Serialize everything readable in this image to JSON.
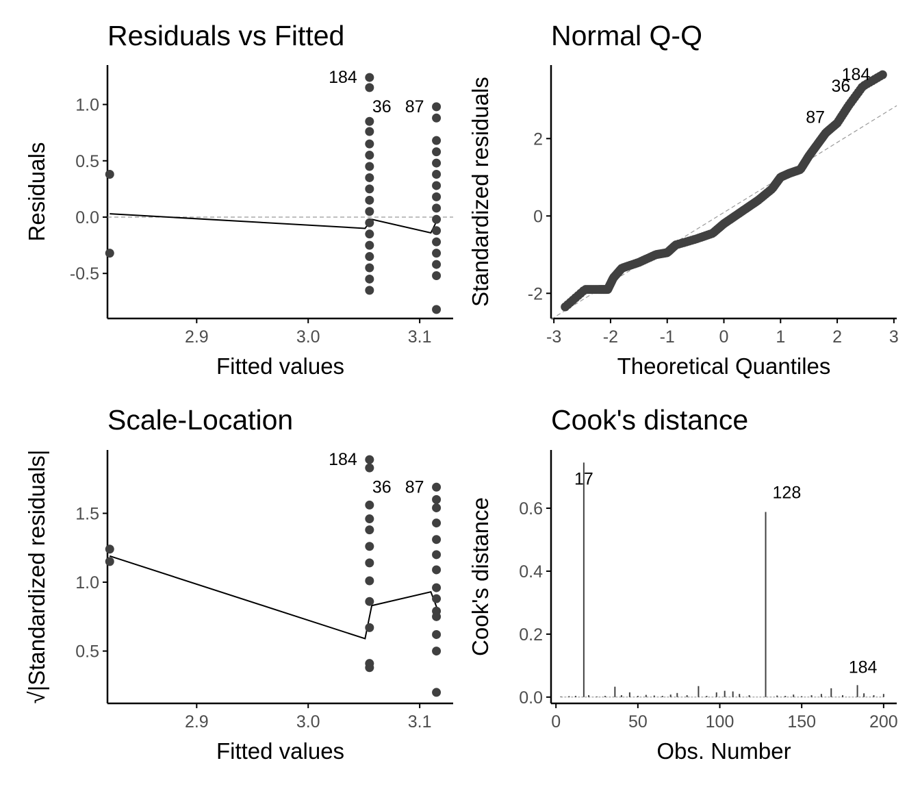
{
  "chart_data": [
    {
      "type": "scatter",
      "title": "Residuals vs Fitted",
      "xlabel": "Fitted values",
      "ylabel": "Residuals",
      "xlim": [
        2.82,
        3.13
      ],
      "ylim": [
        -0.9,
        1.35
      ],
      "xticks": [
        2.9,
        3.0,
        3.1
      ],
      "xtick_labels": [
        "2.9",
        "3.0",
        "3.1"
      ],
      "yticks": [
        1.0,
        0.5,
        0.0,
        -0.5
      ],
      "ytick_labels": [
        "1.0",
        "0.5",
        "0.0",
        "-0.5"
      ],
      "reference_line": {
        "y": 0,
        "style": "dashed"
      },
      "points": [
        [
          2.822,
          0.38
        ],
        [
          2.822,
          -0.32
        ],
        [
          3.055,
          1.24
        ],
        [
          3.055,
          1.15
        ],
        [
          3.055,
          0.85
        ],
        [
          3.055,
          0.76
        ],
        [
          3.055,
          0.65
        ],
        [
          3.055,
          0.55
        ],
        [
          3.055,
          0.45
        ],
        [
          3.055,
          0.35
        ],
        [
          3.055,
          0.25
        ],
        [
          3.055,
          0.15
        ],
        [
          3.055,
          0.05
        ],
        [
          3.055,
          -0.05
        ],
        [
          3.055,
          -0.15
        ],
        [
          3.055,
          -0.25
        ],
        [
          3.055,
          -0.35
        ],
        [
          3.055,
          -0.45
        ],
        [
          3.055,
          -0.55
        ],
        [
          3.055,
          -0.65
        ],
        [
          3.115,
          0.98
        ],
        [
          3.115,
          0.88
        ],
        [
          3.115,
          0.68
        ],
        [
          3.115,
          0.58
        ],
        [
          3.115,
          0.48
        ],
        [
          3.115,
          0.38
        ],
        [
          3.115,
          0.28
        ],
        [
          3.115,
          0.18
        ],
        [
          3.115,
          0.08
        ],
        [
          3.115,
          -0.02
        ],
        [
          3.115,
          -0.12
        ],
        [
          3.115,
          -0.22
        ],
        [
          3.115,
          -0.32
        ],
        [
          3.115,
          -0.42
        ],
        [
          3.115,
          -0.52
        ],
        [
          3.115,
          -0.82
        ]
      ],
      "smooth_line": [
        [
          2.822,
          0.03
        ],
        [
          3.051,
          -0.1
        ],
        [
          3.057,
          -0.02
        ],
        [
          3.11,
          -0.14
        ],
        [
          3.117,
          0.0
        ]
      ],
      "point_labels": [
        {
          "text": "184",
          "x": 3.055,
          "y": 1.24,
          "side": "left"
        },
        {
          "text": "36",
          "x": 3.055,
          "y": 0.98,
          "side": "right"
        },
        {
          "text": "87",
          "x": 3.115,
          "y": 0.98,
          "side": "left"
        }
      ]
    },
    {
      "type": "scatter",
      "title": "Normal Q-Q",
      "xlabel": "Theoretical Quantiles",
      "ylabel": "Standardized residuals",
      "xlim": [
        -3.05,
        3.05
      ],
      "ylim": [
        -2.65,
        3.9
      ],
      "xticks": [
        -3,
        -2,
        -1,
        0,
        1,
        2,
        3
      ],
      "xtick_labels": [
        "-3",
        "-2",
        "-1",
        "0",
        "1",
        "2",
        "3"
      ],
      "yticks": [
        2,
        0,
        -2
      ],
      "ytick_labels": [
        "2",
        "0",
        "-2"
      ],
      "reference_line": {
        "x": [
          -3.05,
          3.05
        ],
        "y": [
          -2.67,
          2.85
        ],
        "style": "dashed"
      },
      "quantile_curve": [
        [
          -2.8,
          -2.35
        ],
        [
          -2.45,
          -1.9
        ],
        [
          -2.2,
          -1.9
        ],
        [
          -2.05,
          -1.9
        ],
        [
          -1.95,
          -1.6
        ],
        [
          -1.8,
          -1.35
        ],
        [
          -1.5,
          -1.2
        ],
        [
          -1.2,
          -1.0
        ],
        [
          -1.0,
          -0.95
        ],
        [
          -0.85,
          -0.75
        ],
        [
          -0.5,
          -0.6
        ],
        [
          -0.2,
          -0.45
        ],
        [
          0.0,
          -0.2
        ],
        [
          0.2,
          0.0
        ],
        [
          0.4,
          0.2
        ],
        [
          0.6,
          0.4
        ],
        [
          0.85,
          0.7
        ],
        [
          1.0,
          1.0
        ],
        [
          1.15,
          1.1
        ],
        [
          1.35,
          1.2
        ],
        [
          1.5,
          1.55
        ],
        [
          1.65,
          1.85
        ],
        [
          1.8,
          2.15
        ],
        [
          2.0,
          2.4
        ],
        [
          2.2,
          2.85
        ],
        [
          2.45,
          3.35
        ],
        [
          2.8,
          3.65
        ]
      ],
      "point_labels": [
        {
          "text": "184",
          "x": 2.8,
          "y": 3.65,
          "side": "left"
        },
        {
          "text": "36",
          "x": 2.45,
          "y": 3.35,
          "side": "left"
        },
        {
          "text": "87",
          "x": 2.0,
          "y": 2.55,
          "side": "left"
        }
      ]
    },
    {
      "type": "scatter",
      "title": "Scale-Location",
      "xlabel": "Fitted values",
      "ylabel": "√|Standardized residuals|",
      "xlim": [
        2.82,
        3.13
      ],
      "ylim": [
        0.12,
        1.96
      ],
      "xticks": [
        2.9,
        3.0,
        3.1
      ],
      "xtick_labels": [
        "2.9",
        "3.0",
        "3.1"
      ],
      "yticks": [
        1.5,
        1.0,
        0.5
      ],
      "ytick_labels": [
        "1.5",
        "1.0",
        "0.5"
      ],
      "points": [
        [
          2.822,
          1.24
        ],
        [
          2.822,
          1.15
        ],
        [
          3.055,
          1.89
        ],
        [
          3.055,
          1.83
        ],
        [
          3.055,
          1.56
        ],
        [
          3.055,
          1.46
        ],
        [
          3.055,
          1.38
        ],
        [
          3.055,
          1.26
        ],
        [
          3.055,
          1.14
        ],
        [
          3.055,
          1.01
        ],
        [
          3.055,
          0.86
        ],
        [
          3.055,
          0.67
        ],
        [
          3.055,
          0.41
        ],
        [
          3.055,
          0.38
        ],
        [
          3.115,
          1.69
        ],
        [
          3.115,
          1.6
        ],
        [
          3.115,
          1.54
        ],
        [
          3.115,
          1.43
        ],
        [
          3.115,
          1.31
        ],
        [
          3.115,
          1.2
        ],
        [
          3.115,
          1.09
        ],
        [
          3.115,
          0.96
        ],
        [
          3.115,
          0.88
        ],
        [
          3.115,
          0.79
        ],
        [
          3.115,
          0.75
        ],
        [
          3.115,
          0.62
        ],
        [
          3.115,
          0.5
        ],
        [
          3.115,
          0.2
        ]
      ],
      "smooth_line": [
        [
          2.822,
          1.19
        ],
        [
          3.051,
          0.59
        ],
        [
          3.057,
          0.83
        ],
        [
          3.11,
          0.93
        ],
        [
          3.117,
          0.78
        ]
      ],
      "point_labels": [
        {
          "text": "184",
          "x": 3.055,
          "y": 1.89,
          "side": "left"
        },
        {
          "text": "36",
          "x": 3.055,
          "y": 1.69,
          "side": "right"
        },
        {
          "text": "87",
          "x": 3.115,
          "y": 1.69,
          "side": "left"
        }
      ]
    },
    {
      "type": "bar",
      "title": "Cook's distance",
      "xlabel": "Obs. Number",
      "ylabel": "Cook's distance",
      "xlim": [
        -3,
        208
      ],
      "ylim": [
        -0.02,
        0.785
      ],
      "xticks": [
        0,
        50,
        100,
        150,
        200
      ],
      "xtick_labels": [
        "0",
        "50",
        "100",
        "150",
        "200"
      ],
      "yticks": [
        0.6,
        0.4,
        0.2,
        0.0
      ],
      "ytick_labels": [
        "0.6",
        "0.4",
        "0.2",
        "0.0"
      ],
      "spikes": [
        [
          3,
          0.002
        ],
        [
          8,
          0.003
        ],
        [
          12,
          0.004
        ],
        [
          17,
          0.745
        ],
        [
          20,
          0.006
        ],
        [
          25,
          0.002
        ],
        [
          30,
          0.004
        ],
        [
          36,
          0.033
        ],
        [
          40,
          0.006
        ],
        [
          45,
          0.015
        ],
        [
          50,
          0.004
        ],
        [
          55,
          0.007
        ],
        [
          60,
          0.005
        ],
        [
          65,
          0.004
        ],
        [
          70,
          0.008
        ],
        [
          74,
          0.013
        ],
        [
          80,
          0.006
        ],
        [
          87,
          0.035
        ],
        [
          92,
          0.004
        ],
        [
          98,
          0.015
        ],
        [
          103,
          0.02
        ],
        [
          108,
          0.018
        ],
        [
          112,
          0.01
        ],
        [
          118,
          0.006
        ],
        [
          128,
          0.588
        ],
        [
          135,
          0.005
        ],
        [
          140,
          0.004
        ],
        [
          145,
          0.008
        ],
        [
          150,
          0.003
        ],
        [
          156,
          0.006
        ],
        [
          162,
          0.01
        ],
        [
          168,
          0.028
        ],
        [
          175,
          0.006
        ],
        [
          184,
          0.038
        ],
        [
          188,
          0.012
        ],
        [
          194,
          0.006
        ],
        [
          200,
          0.01
        ]
      ],
      "point_labels": [
        {
          "text": "17",
          "x": 17,
          "y": 0.745
        },
        {
          "text": "128",
          "x": 128,
          "y": 0.588
        },
        {
          "text": "184",
          "x": 184,
          "y": 0.038
        }
      ]
    }
  ]
}
